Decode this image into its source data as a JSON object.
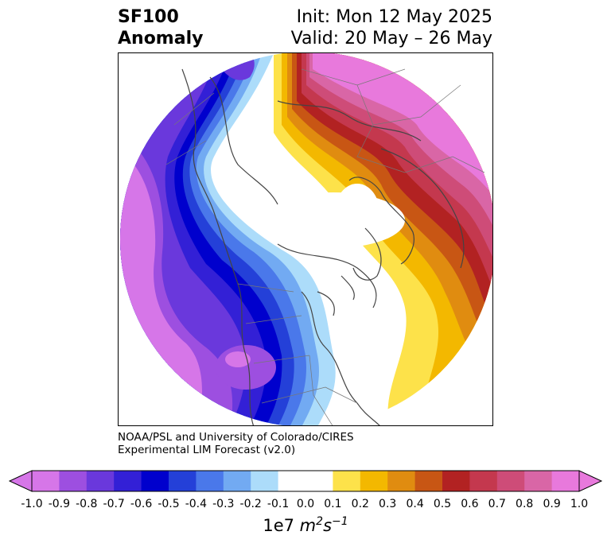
{
  "title": {
    "variable": "SF100",
    "subtitle": "Anomaly",
    "init": "Init: Mon 12 May 2025",
    "valid": "Valid: 20 May – 26 May"
  },
  "credit": {
    "line1": "NOAA/PSL and University of Colorado/CIRES",
    "line2": "Experimental LIM Forecast (v2.0)"
  },
  "colorbar": {
    "unit_prefix": "1e7",
    "unit_m": "m",
    "unit_m_exp": "2",
    "unit_s": "s",
    "unit_s_exp": "−1",
    "levels": [
      "-1.0",
      "-0.9",
      "-0.8",
      "-0.7",
      "-0.6",
      "-0.5",
      "-0.4",
      "-0.3",
      "-0.2",
      "-0.1",
      "0.0",
      "0.1",
      "0.2",
      "0.3",
      "0.4",
      "0.5",
      "0.6",
      "0.7",
      "0.8",
      "0.9",
      "1.0"
    ],
    "colors": [
      "#d676e8",
      "#9d4fe0",
      "#6a38dc",
      "#3320d6",
      "#0000cd",
      "#2440d8",
      "#4a78ea",
      "#72aaf2",
      "#acdcfa",
      "#ffffff",
      "#ffffff",
      "#fde24a",
      "#f3b800",
      "#e08c10",
      "#c85614",
      "#b22222",
      "#c4384e",
      "#ce4c78",
      "#d966a6",
      "#e879dc"
    ],
    "under_color": "#d676e8",
    "over_color": "#e879dc"
  }
}
